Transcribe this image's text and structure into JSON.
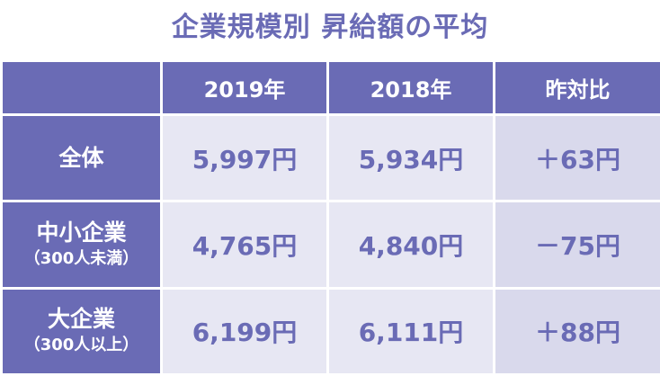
{
  "title": "企業規模別 昇給額の平均",
  "columns": {
    "y2019": "2019年",
    "y2018": "2018年",
    "yoy": "昨対比"
  },
  "rows": [
    {
      "label": "全体",
      "sublabel": "",
      "y2019": "5,997円",
      "y2018": "5,934円",
      "yoy": "＋63円"
    },
    {
      "label": "中小企業",
      "sublabel": "（300人未満）",
      "y2019": "4,765円",
      "y2018": "4,840円",
      "yoy": "－75円"
    },
    {
      "label": "大企業",
      "sublabel": "（300人以上）",
      "y2019": "6,199円",
      "y2018": "6,111円",
      "yoy": "＋88円"
    }
  ],
  "colors": {
    "accent": "#6a6bb5",
    "cell_light": "#e7e7f3",
    "cell_diff": "#d9d9ec",
    "background": "#ffffff"
  }
}
